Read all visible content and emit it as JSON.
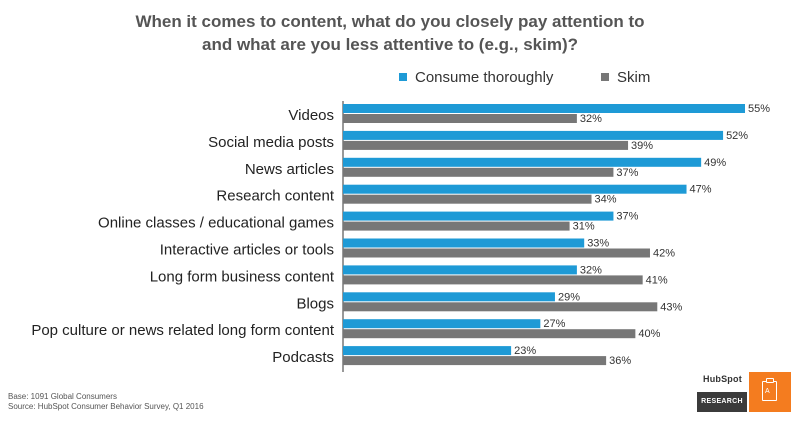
{
  "chart_data": {
    "type": "bar",
    "orientation": "horizontal",
    "title": [
      "When it comes to content, what do you closely pay attention to",
      "and what are you less attentive to (e.g., skim)?"
    ],
    "categories": [
      "Videos",
      "Social media posts",
      "News articles",
      "Research content",
      "Online classes / educational games",
      "Interactive articles or tools",
      "Long form business content",
      "Blogs",
      "Pop culture or news related long form content",
      "Podcasts"
    ],
    "series": [
      {
        "name": "Consume thoroughly",
        "color": "#1e9ad6",
        "values": [
          55,
          52,
          49,
          47,
          37,
          33,
          32,
          29,
          27,
          23
        ]
      },
      {
        "name": "Skim",
        "color": "#777777",
        "values": [
          32,
          39,
          37,
          34,
          31,
          42,
          41,
          43,
          40,
          36
        ]
      }
    ],
    "value_suffix": "%",
    "xlim": [
      0,
      55
    ],
    "grid": false,
    "legend_position": "top"
  },
  "footer": {
    "base": "Base: 1091 Global Consumers",
    "source": "Source: HubSpot Consumer Behavior Survey, Q1 2016"
  },
  "logo": {
    "brand": "HubSpot",
    "label": "RESEARCH",
    "accent_color": "#f47c1f",
    "icon": "clipboard-icon"
  }
}
